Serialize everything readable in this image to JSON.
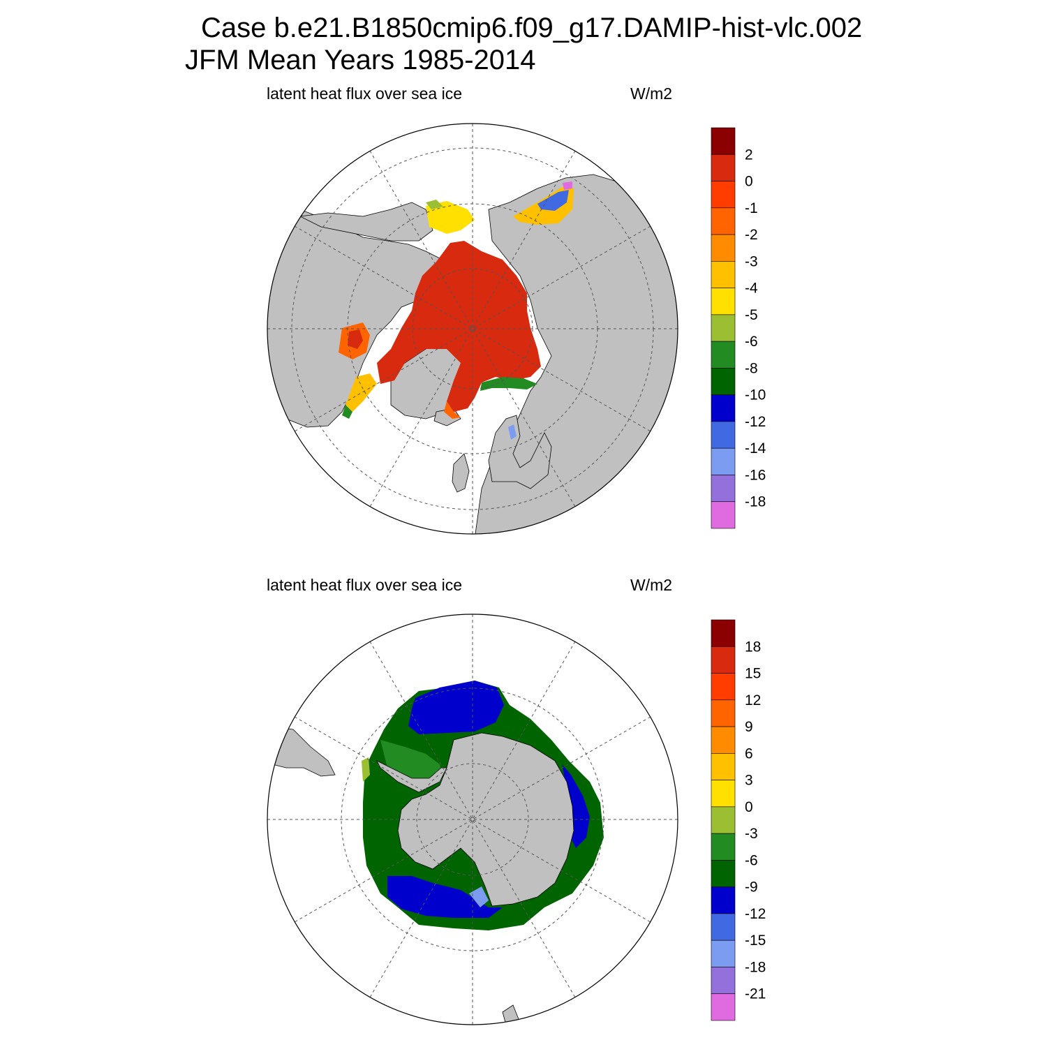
{
  "title": {
    "case": "Case b.e21.B1850cmip6.f09_g17.DAMIP-hist-vlc.002",
    "period": "JFM Mean    Years 1985-2014"
  },
  "panels": [
    {
      "id": "north",
      "variable": "latent heat flux over sea ice",
      "units": "W/m2",
      "colorbar": {
        "labels": [
          "2",
          "0",
          "-1",
          "-2",
          "-3",
          "-4",
          "-5",
          "-6",
          "-8",
          "-10",
          "-12",
          "-14",
          "-16",
          "-18"
        ],
        "colors": [
          "#8b0000",
          "#d82a0f",
          "#ff3d00",
          "#ff6400",
          "#ff8c00",
          "#ffc000",
          "#ffe000",
          "#9bbe32",
          "#228b22",
          "#006400",
          "#0000cd",
          "#4169e1",
          "#7b9cf0",
          "#9370db",
          "#e06ae0"
        ]
      }
    },
    {
      "id": "south",
      "variable": "latent heat flux over sea ice",
      "units": "W/m2",
      "colorbar": {
        "labels": [
          "18",
          "15",
          "12",
          "9",
          "6",
          "3",
          "0",
          "-3",
          "-6",
          "-9",
          "-12",
          "-15",
          "-18",
          "-21"
        ],
        "colors": [
          "#8b0000",
          "#d82a0f",
          "#ff3d00",
          "#ff6400",
          "#ff8c00",
          "#ffc000",
          "#ffe000",
          "#9bbe32",
          "#228b22",
          "#006400",
          "#0000cd",
          "#4169e1",
          "#7b9cf0",
          "#9370db",
          "#e06ae0"
        ]
      }
    }
  ],
  "colors": {
    "land": "#c0c0c0",
    "north_ice": "#d82a0f",
    "south_ice_outer": "#006400",
    "south_ice_blue": "#0000cd"
  }
}
